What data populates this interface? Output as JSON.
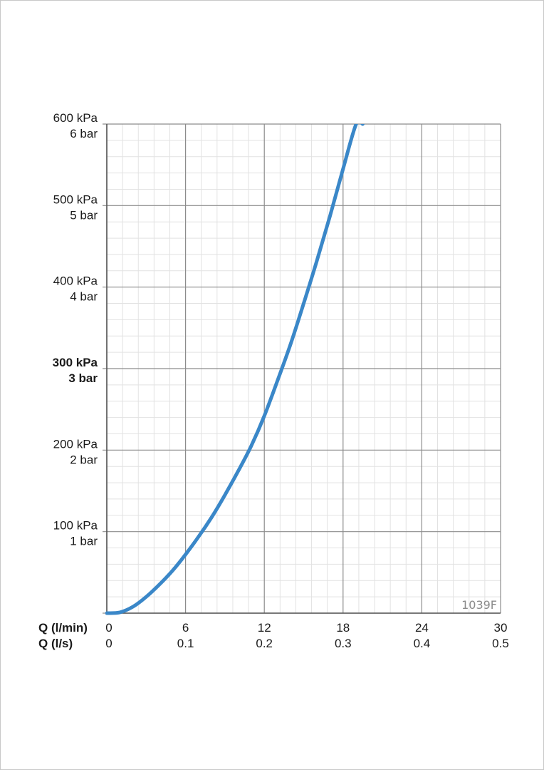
{
  "chart_data": {
    "type": "line",
    "code_label": "1039F",
    "x_axes": {
      "primary": {
        "name": "Q (l/min)",
        "ticks": [
          0,
          6,
          12,
          18,
          24,
          30
        ],
        "tick_labels": [
          "0",
          "6",
          "12",
          "18",
          "24",
          "30"
        ],
        "range": [
          0,
          30
        ]
      },
      "secondary": {
        "name": "Q (l/s)",
        "tick_labels": [
          "0",
          "0.1",
          "0.2",
          "0.3",
          "0.4",
          "0.5"
        ]
      }
    },
    "y_axis": {
      "range": [
        0,
        600
      ],
      "ticks": [
        100,
        200,
        300,
        400,
        500,
        600
      ],
      "tick_labels_kpa": [
        "100 kPa",
        "200 kPa",
        "300 kPa",
        "400 kPa",
        "500 kPa",
        "600 kPa"
      ],
      "tick_labels_bar": [
        "1 bar",
        "2 bar",
        "3 bar",
        "4 bar",
        "5 bar",
        "6 bar"
      ],
      "bold_tick": 300
    },
    "grid": true,
    "series": [
      {
        "color": "#3a87c8",
        "x": [
          0,
          1,
          2,
          3,
          4,
          5,
          6,
          7,
          8,
          9,
          10,
          11,
          12,
          13,
          14,
          15,
          16,
          17,
          18,
          19,
          19.5
        ],
        "y": [
          0,
          1,
          8,
          20,
          35,
          52,
          72,
          94,
          118,
          145,
          174,
          205,
          242,
          285,
          330,
          380,
          432,
          487,
          545,
          600,
          600
        ]
      }
    ]
  }
}
